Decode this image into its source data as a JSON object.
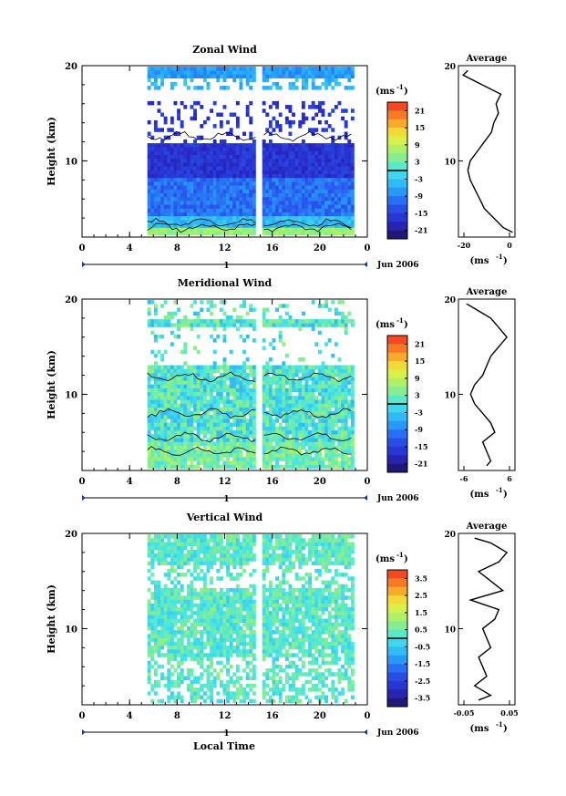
{
  "figure": {
    "x_axis_label": "Local Time",
    "date_label": "Jun 2006",
    "day_tick_label": "1",
    "x_ticks": [
      "0",
      "4",
      "8",
      "12",
      "16",
      "20",
      "0"
    ],
    "y_ticks": [
      "20",
      "10"
    ],
    "y_axis_label": "Height (km)",
    "unit_label": "(ms",
    "unit_sup": "-1",
    "avg_title": "Average"
  },
  "chart_data": [
    {
      "type": "heatmap",
      "title": "Zonal Wind",
      "xlabel": "",
      "ylabel": "Height (km)",
      "xlim": [
        0,
        24
      ],
      "ylim": [
        2,
        20
      ],
      "data_gap_hours": [
        14.6,
        15.0
      ],
      "colorbar": {
        "ticks": [
          "21",
          "15",
          "9",
          "3",
          "-3",
          "-9",
          "-15",
          "-21"
        ],
        "range": [
          -24,
          24
        ]
      },
      "average_profile": {
        "title": "Average",
        "xlabel": "(ms-1)",
        "x_ticks": [
          "-20",
          "0"
        ],
        "xlim": [
          -22,
          2
        ],
        "height_km": [
          2.5,
          3,
          4,
          5,
          6,
          7,
          8,
          9,
          10,
          11,
          12,
          13,
          14,
          15,
          16,
          17,
          18,
          19,
          19.5
        ],
        "wind_ms": [
          1,
          -3,
          -7,
          -11,
          -13,
          -15,
          -17,
          -18,
          -17,
          -14,
          -11,
          -8,
          -7,
          -5,
          -6,
          -4,
          -12,
          -20,
          -18
        ]
      }
    },
    {
      "type": "heatmap",
      "title": "Meridional Wind",
      "xlabel": "",
      "ylabel": "Height (km)",
      "xlim": [
        0,
        24
      ],
      "ylim": [
        2,
        20
      ],
      "data_gap_hours": [
        14.6,
        15.0
      ],
      "colorbar": {
        "ticks": [
          "21",
          "15",
          "9",
          "3",
          "-3",
          "-9",
          "-15",
          "-21"
        ],
        "range": [
          -24,
          24
        ]
      },
      "average_profile": {
        "title": "Average",
        "xlabel": "(ms-1)",
        "x_ticks": [
          "-6",
          "6"
        ],
        "xlim": [
          -7,
          7
        ],
        "height_km": [
          2.5,
          3,
          4,
          5,
          6,
          7,
          8,
          9,
          10,
          11,
          12,
          13,
          14,
          15,
          16,
          17,
          18,
          19,
          19.5
        ],
        "wind_ms": [
          0,
          1,
          0,
          -1,
          2,
          1,
          -1,
          -3,
          -4,
          -3,
          -1,
          0,
          1,
          3,
          5,
          3,
          1,
          -3,
          -5
        ]
      }
    },
    {
      "type": "heatmap",
      "title": "Vertical Wind",
      "xlabel": "Local Time",
      "ylabel": "Height (km)",
      "xlim": [
        0,
        24
      ],
      "ylim": [
        2,
        20
      ],
      "data_gap_hours": [
        14.6,
        15.0
      ],
      "colorbar": {
        "ticks": [
          "3.5",
          "2.5",
          "1.5",
          "0.5",
          "-0.5",
          "-1.5",
          "-2.5",
          "-3.5"
        ],
        "range": [
          -4,
          4
        ]
      },
      "average_profile": {
        "title": "Average",
        "xlabel": "(ms-1)",
        "x_ticks": [
          "-0.05",
          "0.05"
        ],
        "xlim": [
          -0.07,
          0.07
        ],
        "height_km": [
          2.5,
          3,
          4,
          5,
          6,
          7,
          8,
          9,
          10,
          11,
          12,
          13,
          14,
          15,
          16,
          17,
          18,
          19,
          19.5
        ],
        "wind_ms": [
          -0.02,
          0.01,
          -0.03,
          0.0,
          -0.01,
          -0.02,
          0.01,
          0.0,
          -0.01,
          0.02,
          0.03,
          -0.04,
          0.04,
          0.01,
          -0.02,
          0.03,
          0.05,
          0.01,
          -0.03
        ]
      }
    }
  ]
}
